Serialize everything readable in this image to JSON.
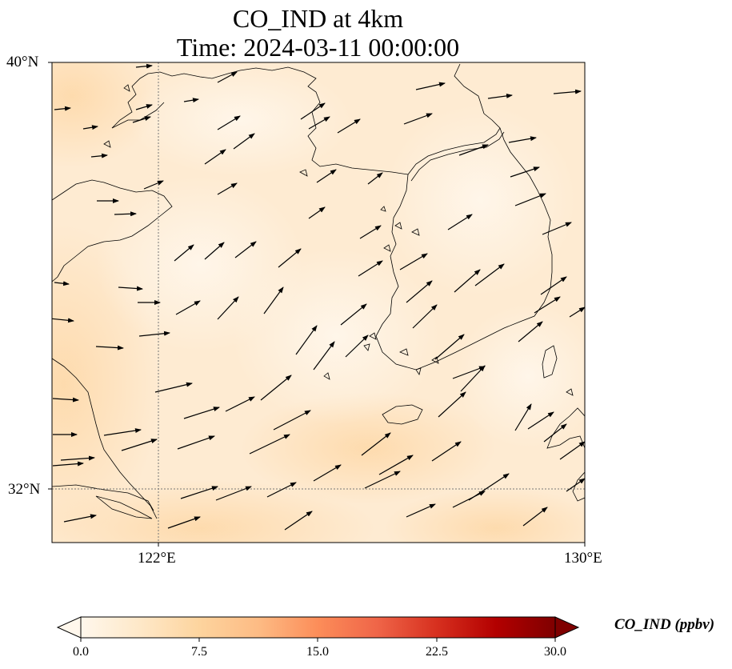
{
  "title": {
    "line1": "CO_IND at 4km",
    "line2": "Time: 2024-03-11 00:00:00"
  },
  "map": {
    "lon_range": [
      118,
      130
    ],
    "lat_range": [
      31,
      40
    ],
    "lat_ticks": [
      "40°N",
      "32°N"
    ],
    "lon_ticks": [
      "122°E",
      "130°E"
    ],
    "gridlines": [
      {
        "type": "lon",
        "value": 122
      },
      {
        "type": "lat",
        "value": 32
      }
    ],
    "field": "CO_IND",
    "field_value_range_ppbv": [
      1,
      6
    ],
    "wind_vectors": "present"
  },
  "colorbar": {
    "label": "CO_IND (ppbv)",
    "ticks": [
      "0.0",
      "7.5",
      "15.0",
      "22.5",
      "30.0"
    ],
    "range": [
      0,
      30
    ],
    "extend": "both",
    "colormap": "OrRd",
    "colors": [
      "#fff7ec",
      "#fee8c8",
      "#fdd49e",
      "#fdbb84",
      "#fc8d59",
      "#ef6548",
      "#d7301f",
      "#b30000",
      "#7f0000"
    ]
  }
}
